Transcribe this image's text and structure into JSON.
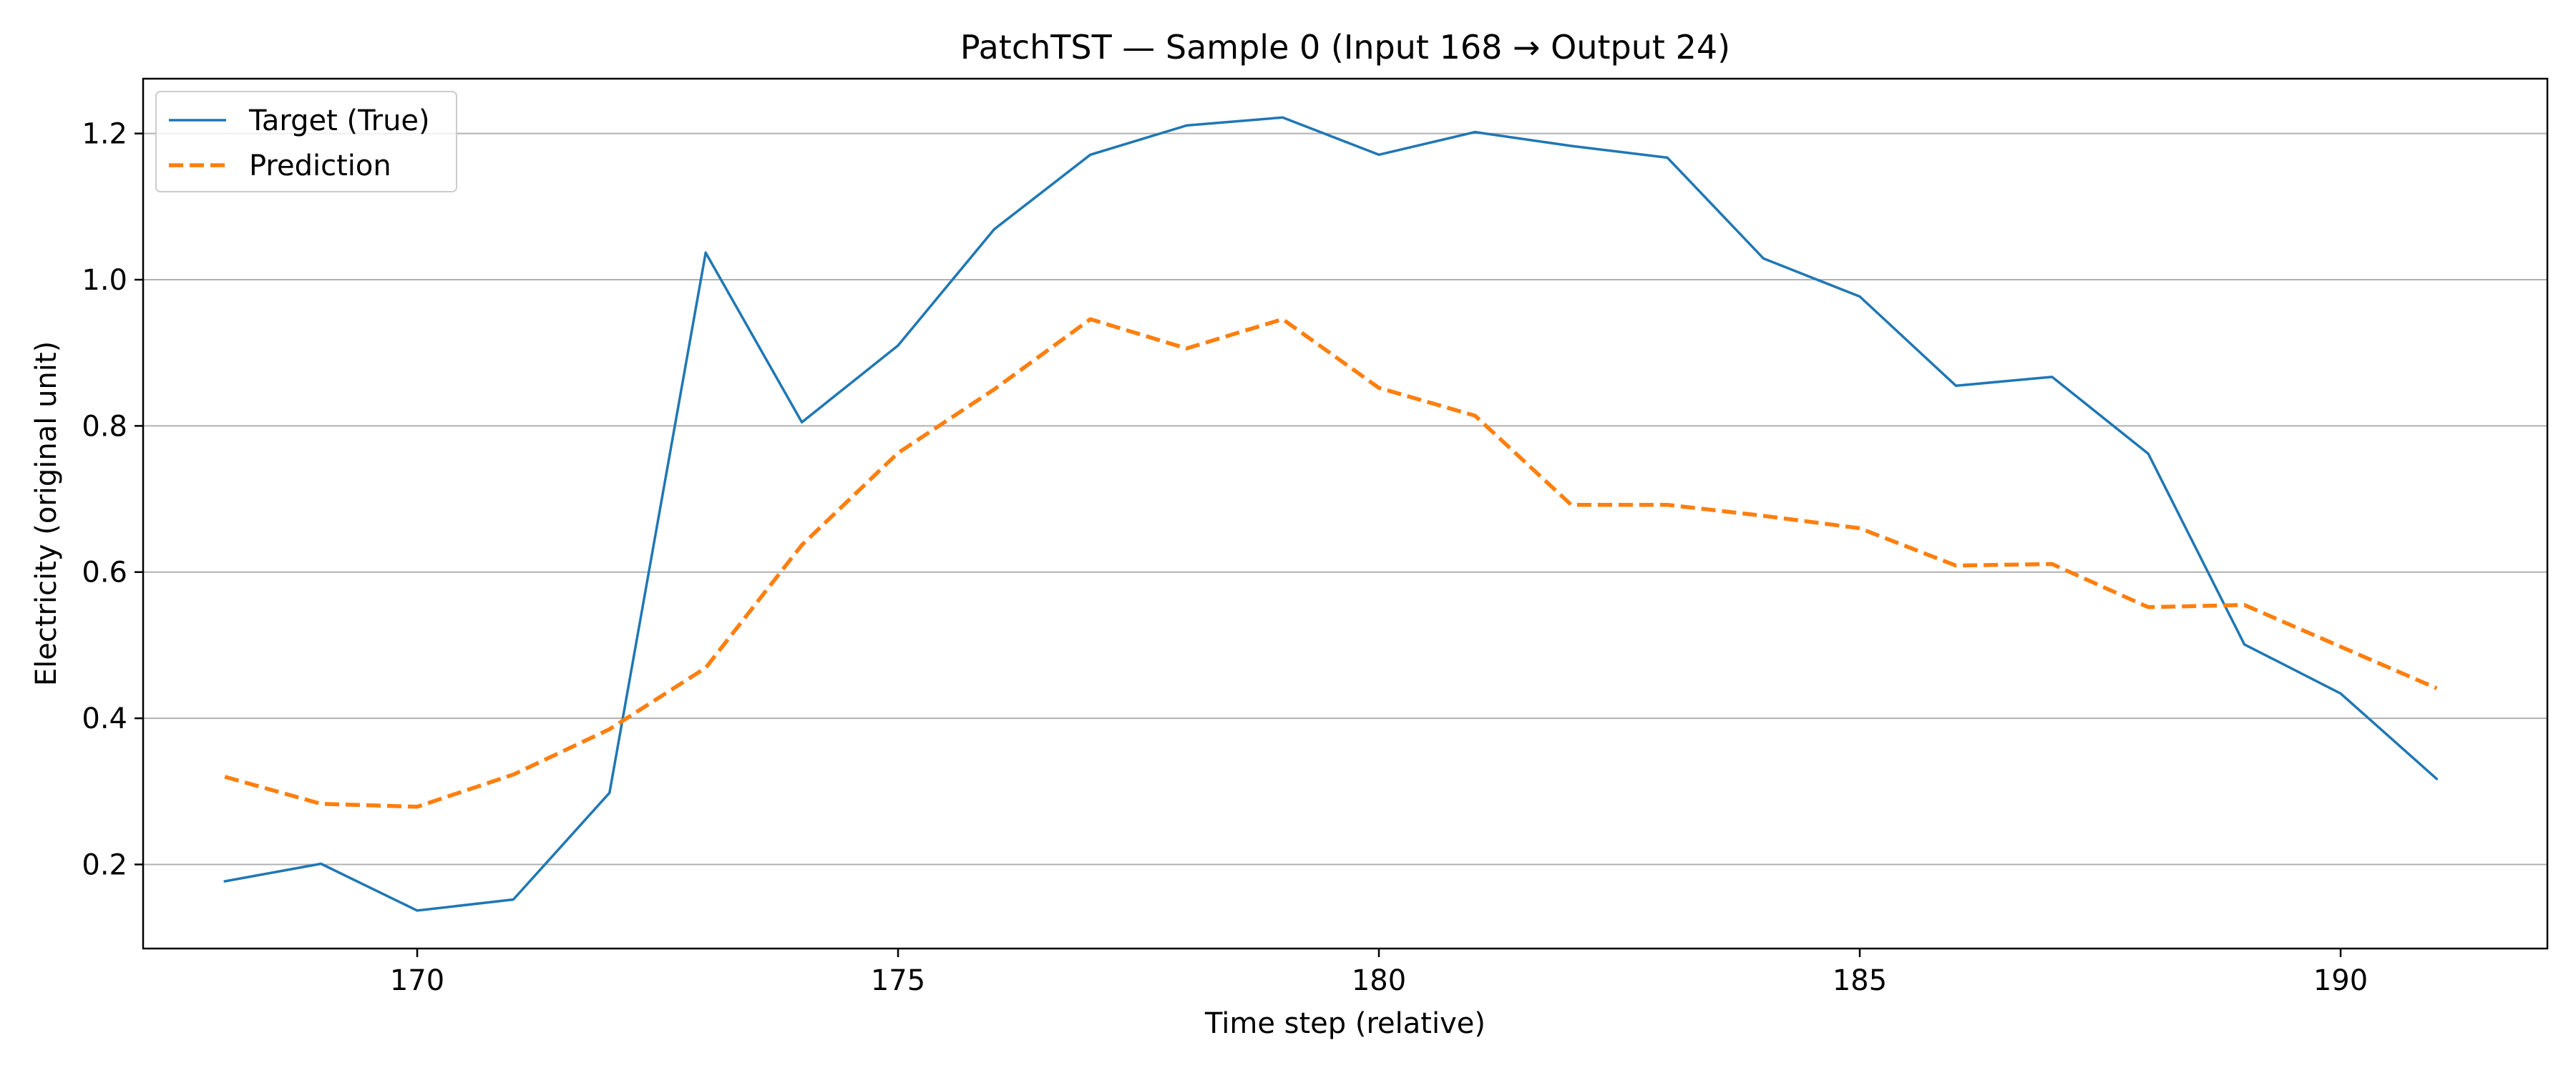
{
  "chart_data": {
    "type": "line",
    "title": "PatchTST — Sample 0 (Input 168 → Output 24)",
    "xlabel": "Time step (relative)",
    "ylabel": "Electricity (original unit)",
    "xlim": [
      167.15,
      192.15
    ],
    "ylim": [
      0.085,
      1.275
    ],
    "xticks": [
      170,
      175,
      180,
      185,
      190
    ],
    "yticks": [
      0.2,
      0.4,
      0.6,
      0.8,
      1.0,
      1.2
    ],
    "xtick_labels": [
      "170",
      "175",
      "180",
      "185",
      "190"
    ],
    "ytick_labels": [
      "0.2",
      "0.4",
      "0.6",
      "0.8",
      "1.0",
      "1.2"
    ],
    "grid": "horizontal",
    "legend_position": "top-left",
    "x": [
      168,
      169,
      170,
      171,
      172,
      173,
      174,
      175,
      176,
      177,
      178,
      179,
      180,
      181,
      182,
      183,
      184,
      185,
      186,
      187,
      188,
      189,
      190,
      191
    ],
    "series": [
      {
        "name": "Target (True)",
        "color": "#1f77b4",
        "style": "solid",
        "values": [
          0.177,
          0.201,
          0.137,
          0.152,
          0.298,
          1.037,
          0.805,
          0.91,
          1.069,
          1.171,
          1.211,
          1.222,
          1.171,
          1.202,
          1.183,
          1.167,
          1.029,
          0.977,
          0.855,
          0.867,
          0.762,
          0.501,
          0.434,
          0.317
        ]
      },
      {
        "name": "Prediction",
        "color": "#ff7f0e",
        "style": "dashed",
        "values": [
          0.32,
          0.283,
          0.279,
          0.323,
          0.385,
          0.469,
          0.637,
          0.763,
          0.85,
          0.946,
          0.906,
          0.946,
          0.852,
          0.814,
          0.692,
          0.692,
          0.677,
          0.66,
          0.609,
          0.611,
          0.552,
          0.555,
          0.498,
          0.441
        ]
      }
    ]
  }
}
